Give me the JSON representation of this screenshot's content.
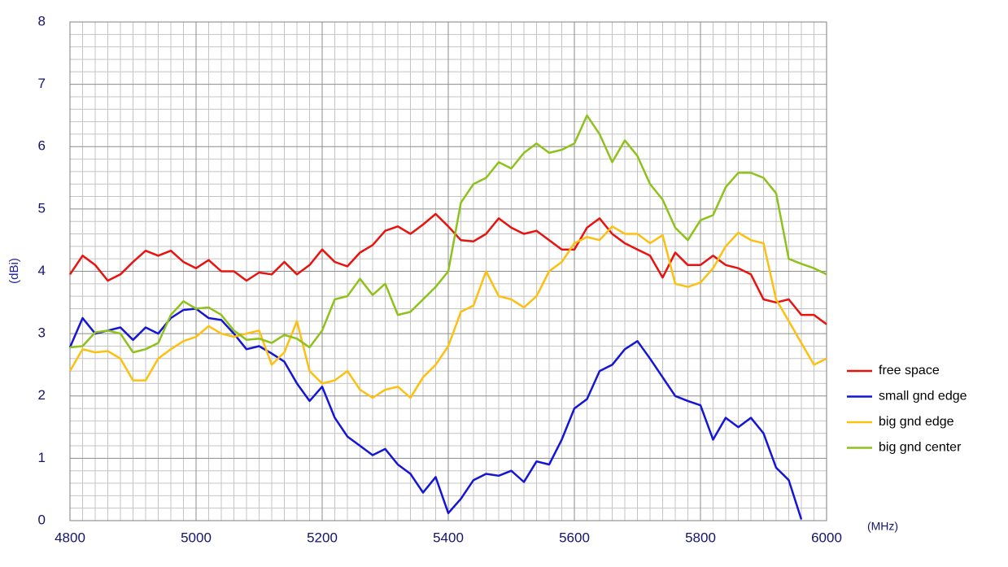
{
  "chart_data": {
    "type": "line",
    "x_label": "(MHz)",
    "y_label": "(dBi)",
    "x": [
      4800,
      4820,
      4840,
      4860,
      4880,
      4900,
      4920,
      4940,
      4960,
      4980,
      5000,
      5020,
      5040,
      5060,
      5080,
      5100,
      5120,
      5140,
      5160,
      5180,
      5200,
      5220,
      5240,
      5260,
      5280,
      5300,
      5320,
      5340,
      5360,
      5380,
      5400,
      5420,
      5440,
      5460,
      5480,
      5500,
      5520,
      5540,
      5560,
      5580,
      5600,
      5620,
      5640,
      5660,
      5680,
      5700,
      5720,
      5740,
      5760,
      5780,
      5800,
      5820,
      5840,
      5860,
      5880,
      5900,
      5920,
      5940,
      5960,
      5980,
      6000
    ],
    "series": [
      {
        "name": "free space",
        "color": "#e8130f",
        "values": [
          3.95,
          4.25,
          4.1,
          3.85,
          3.95,
          4.15,
          4.33,
          4.25,
          4.33,
          4.15,
          4.05,
          4.18,
          4.0,
          4.0,
          3.85,
          3.98,
          3.95,
          4.15,
          3.95,
          4.1,
          4.35,
          4.15,
          4.08,
          4.3,
          4.42,
          4.65,
          4.72,
          4.6,
          4.75,
          4.92,
          4.72,
          4.5,
          4.48,
          4.6,
          4.85,
          4.7,
          4.6,
          4.65,
          4.5,
          4.35,
          4.35,
          4.7,
          4.85,
          4.6,
          4.45,
          4.35,
          4.25,
          3.9,
          4.3,
          4.1,
          4.1,
          4.25,
          4.1,
          4.05,
          3.95,
          3.55,
          3.5,
          3.55,
          3.3,
          3.3,
          3.15
        ]
      },
      {
        "name": "small gnd edge",
        "color": "#1515d6",
        "values": [
          2.78,
          3.25,
          3.0,
          3.05,
          3.1,
          2.9,
          3.1,
          3.0,
          3.25,
          3.38,
          3.4,
          3.25,
          3.22,
          3.0,
          2.75,
          2.8,
          2.68,
          2.55,
          2.2,
          1.92,
          2.15,
          1.65,
          1.35,
          1.2,
          1.05,
          1.15,
          0.9,
          0.75,
          0.45,
          0.7,
          0.12,
          0.35,
          0.65,
          0.75,
          0.72,
          0.8,
          0.62,
          0.95,
          0.9,
          1.3,
          1.8,
          1.95,
          2.4,
          2.5,
          2.75,
          2.88,
          2.6,
          2.3,
          2.0,
          1.92,
          1.85,
          1.3,
          1.65,
          1.5,
          1.65,
          1.4,
          0.85,
          0.65,
          0.02,
          null,
          null
        ]
      },
      {
        "name": "big gnd edge",
        "color": "#fdc010",
        "values": [
          2.4,
          2.75,
          2.7,
          2.72,
          2.6,
          2.25,
          2.25,
          2.6,
          2.75,
          2.88,
          2.95,
          3.12,
          3.0,
          2.95,
          3.0,
          3.05,
          2.5,
          2.7,
          3.2,
          2.4,
          2.2,
          2.25,
          2.4,
          2.1,
          1.97,
          2.1,
          2.15,
          1.97,
          2.3,
          2.5,
          2.8,
          3.35,
          3.45,
          4.0,
          3.6,
          3.55,
          3.42,
          3.6,
          4.0,
          4.15,
          4.45,
          4.55,
          4.5,
          4.72,
          4.6,
          4.6,
          4.45,
          4.58,
          3.8,
          3.75,
          3.82,
          4.05,
          4.4,
          4.62,
          4.5,
          4.45,
          3.55,
          3.2,
          2.85,
          2.5,
          2.6
        ]
      },
      {
        "name": "big gnd center",
        "color": "#8ec21b",
        "values": [
          2.78,
          2.8,
          3.02,
          3.05,
          3.0,
          2.7,
          2.75,
          2.85,
          3.3,
          3.52,
          3.4,
          3.42,
          3.3,
          3.05,
          2.9,
          2.92,
          2.85,
          2.98,
          2.92,
          2.78,
          3.05,
          3.55,
          3.6,
          3.88,
          3.62,
          3.8,
          3.3,
          3.35,
          3.55,
          3.75,
          4.0,
          5.1,
          5.4,
          5.5,
          5.75,
          5.65,
          5.9,
          6.05,
          5.9,
          5.95,
          6.05,
          6.5,
          6.2,
          5.75,
          6.1,
          5.85,
          5.4,
          5.15,
          4.7,
          4.5,
          4.82,
          4.9,
          5.35,
          5.58,
          5.58,
          5.5,
          5.25,
          4.2,
          4.12,
          4.05,
          3.95
        ]
      }
    ],
    "xlim": [
      4800,
      6000
    ],
    "xticks": [
      4800,
      5000,
      5200,
      5400,
      5600,
      5800,
      6000
    ],
    "ylim": [
      0,
      8
    ],
    "yticks": [
      0,
      1,
      2,
      3,
      4,
      5,
      6,
      7,
      8
    ],
    "grid": true,
    "minor_grid": true,
    "legend": "right"
  }
}
